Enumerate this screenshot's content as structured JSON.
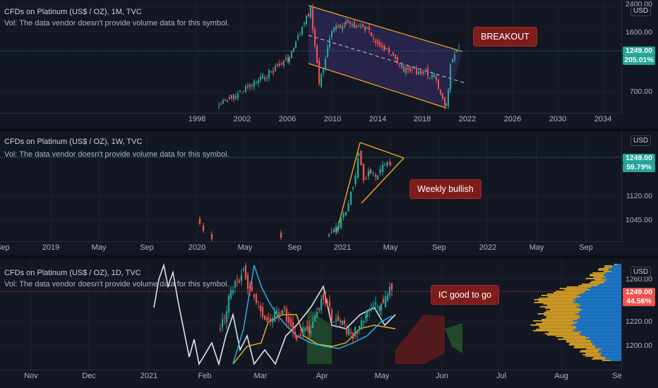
{
  "colors": {
    "bg": "#131722",
    "up": "#26a69a",
    "down": "#ef5350",
    "channel": "#f5a623",
    "channel_fill": "#3b2d6b",
    "callout": "#7f1c1c",
    "price_line": "#26a69a",
    "tag_up": "#26a69a",
    "tag_down": "#ef5350",
    "vol_blue": "#1e88e5",
    "vol_orange": "#f0b324"
  },
  "panes": [
    {
      "title": "CFDs on Platinum (US$ / OZ), 1M, TVC",
      "vol": "Vol: The data vendor doesn't provide volume data for this symbol.",
      "currency": "USD",
      "y_ticks": [
        "2400.00",
        "1600.00",
        "700.00"
      ],
      "price": "1249.00",
      "change": "205.01%",
      "x_ticks": [
        "1998",
        "2002",
        "2006",
        "2010",
        "2014",
        "2018",
        "2022",
        "2026",
        "2030",
        "2034"
      ],
      "callout": "BREAKOUT"
    },
    {
      "title": "CFDs on Platinum (US$ / OZ), 1W, TVC",
      "vol": "Vol: The data vendor doesn't provide volume data for this symbol.",
      "currency": "USD",
      "y_ticks": [
        "1120.00",
        "1045.00"
      ],
      "price": "1249.00",
      "change": "59.79%",
      "x_ticks": [
        "Sep",
        "2019",
        "May",
        "Sep",
        "2020",
        "May",
        "Sep",
        "2021",
        "May",
        "Sep",
        "2022",
        "May",
        "Sep"
      ],
      "callout": "Weekly bullish"
    },
    {
      "title": "CFDs on Platinum (US$ / OZ), 1D, TVC",
      "vol": "Vol: The data vendor doesn't provide volume data for this symbol.",
      "currency": "USD",
      "y_ticks": [
        "1260.00",
        "1220.00",
        "1200.00"
      ],
      "price": "1249.00",
      "change": "44.56%",
      "x_ticks": [
        "Nov",
        "Dec",
        "2021",
        "Feb",
        "Mar",
        "Apr",
        "May",
        "Jun",
        "Jul",
        "Aug",
        "Se"
      ],
      "callout": "IC good to go"
    }
  ],
  "chart_data": [
    {
      "type": "candlestick",
      "title": "CFDs on Platinum (US$ / OZ), 1M, TVC",
      "x": [
        1999,
        2000,
        2001,
        2002,
        2003,
        2004,
        2005,
        2006,
        2007,
        2008,
        2008.6,
        2009,
        2010,
        2011,
        2011.7,
        2012,
        2013,
        2014,
        2015,
        2016,
        2017,
        2018,
        2019,
        2020,
        2020.3,
        2021,
        2021.3
      ],
      "close": [
        380,
        440,
        480,
        520,
        650,
        820,
        880,
        1100,
        1400,
        1900,
        900,
        1300,
        1600,
        1800,
        1500,
        1550,
        1480,
        1400,
        1000,
        1050,
        960,
        850,
        860,
        950,
        600,
        1150,
        1249
      ],
      "channel": "descending, 2008 to 2021",
      "annotation": "BREAKOUT"
    },
    {
      "type": "candlestick",
      "title": "CFDs on Platinum (US$ / OZ), 1W, TVC",
      "x": [
        "2020-10",
        "2020-11",
        "2020-12",
        "2021-01",
        "2021-02",
        "2021-03",
        "2021-04",
        "2021-05"
      ],
      "close": [
        860,
        900,
        1040,
        1100,
        1260,
        1180,
        1200,
        1249
      ],
      "pattern": "symmetrical triangle",
      "annotation": "Weekly bullish"
    },
    {
      "type": "candlestick",
      "title": "CFDs on Platinum (US$ / OZ), 1D, TVC",
      "x": [
        "2021-03",
        "2021-03-15",
        "2021-04",
        "2021-04-15",
        "2021-05"
      ],
      "close": [
        1210,
        1230,
        1195,
        1215,
        1249
      ],
      "indicator": "Ichimoku Cloud",
      "annotation": "IC good to go"
    }
  ]
}
